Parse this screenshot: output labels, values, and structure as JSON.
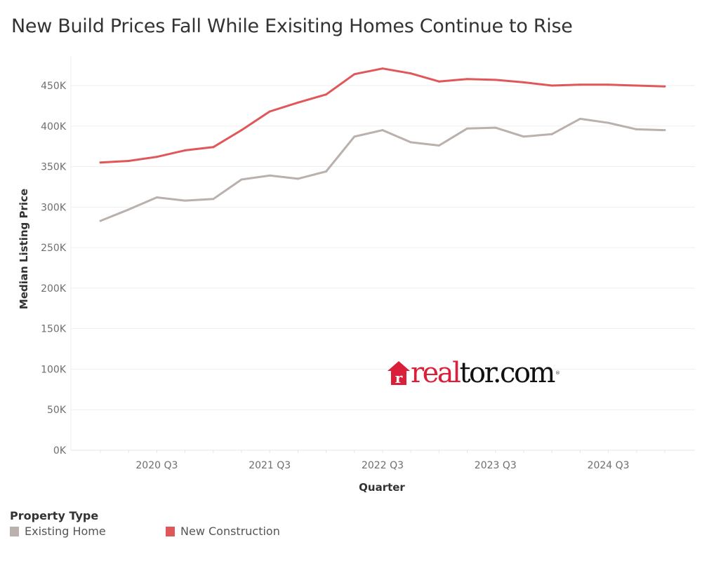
{
  "title": "New Build Prices Fall While Exisiting Homes Continue to Rise",
  "legend": {
    "title": "Property Type",
    "items": [
      {
        "label": "Existing Home",
        "color": "#bab0ac"
      },
      {
        "label": "New Construction",
        "color": "#e15759"
      }
    ]
  },
  "logo": {
    "icon": "house-r-icon",
    "icon_letter": "r",
    "text_red": "real",
    "text_black": "tor.com",
    "registered": "®"
  },
  "chart_data": {
    "type": "line",
    "title": "New Build Prices Fall While Exisiting Homes Continue to Rise",
    "xlabel": "Quarter",
    "ylabel": "Median Listing Price",
    "x": [
      "2020 Q1",
      "2020 Q2",
      "2020 Q3",
      "2020 Q4",
      "2021 Q1",
      "2021 Q2",
      "2021 Q3",
      "2021 Q4",
      "2022 Q1",
      "2022 Q2",
      "2022 Q3",
      "2022 Q4",
      "2023 Q1",
      "2023 Q2",
      "2023 Q3",
      "2023 Q4",
      "2024 Q1",
      "2024 Q2",
      "2024 Q3",
      "2024 Q4",
      "2025 Q1"
    ],
    "x_tick_labels": [
      "2020 Q3",
      "2021 Q3",
      "2022 Q3",
      "2023 Q3",
      "2024 Q3"
    ],
    "y_ticks": [
      0,
      50000,
      100000,
      150000,
      200000,
      250000,
      300000,
      350000,
      400000,
      450000
    ],
    "y_tick_labels": [
      "0K",
      "50K",
      "100K",
      "150K",
      "200K",
      "250K",
      "300K",
      "350K",
      "400K",
      "450K"
    ],
    "ylim": [
      0,
      480000
    ],
    "grid": true,
    "legend_position": "bottom-left",
    "series": [
      {
        "name": "Existing Home",
        "color": "#bab0ac",
        "values": [
          283000,
          297000,
          312000,
          308000,
          310000,
          334000,
          339000,
          335000,
          344000,
          387000,
          395000,
          380000,
          376000,
          397000,
          398000,
          387000,
          390000,
          409000,
          404000,
          396000,
          395000
        ]
      },
      {
        "name": "New Construction",
        "color": "#e15759",
        "values": [
          355000,
          357000,
          362000,
          370000,
          374000,
          395000,
          418000,
          429000,
          439000,
          464000,
          471000,
          465000,
          455000,
          458000,
          457000,
          454000,
          450000,
          451000,
          451000,
          450000,
          449000
        ]
      }
    ]
  }
}
